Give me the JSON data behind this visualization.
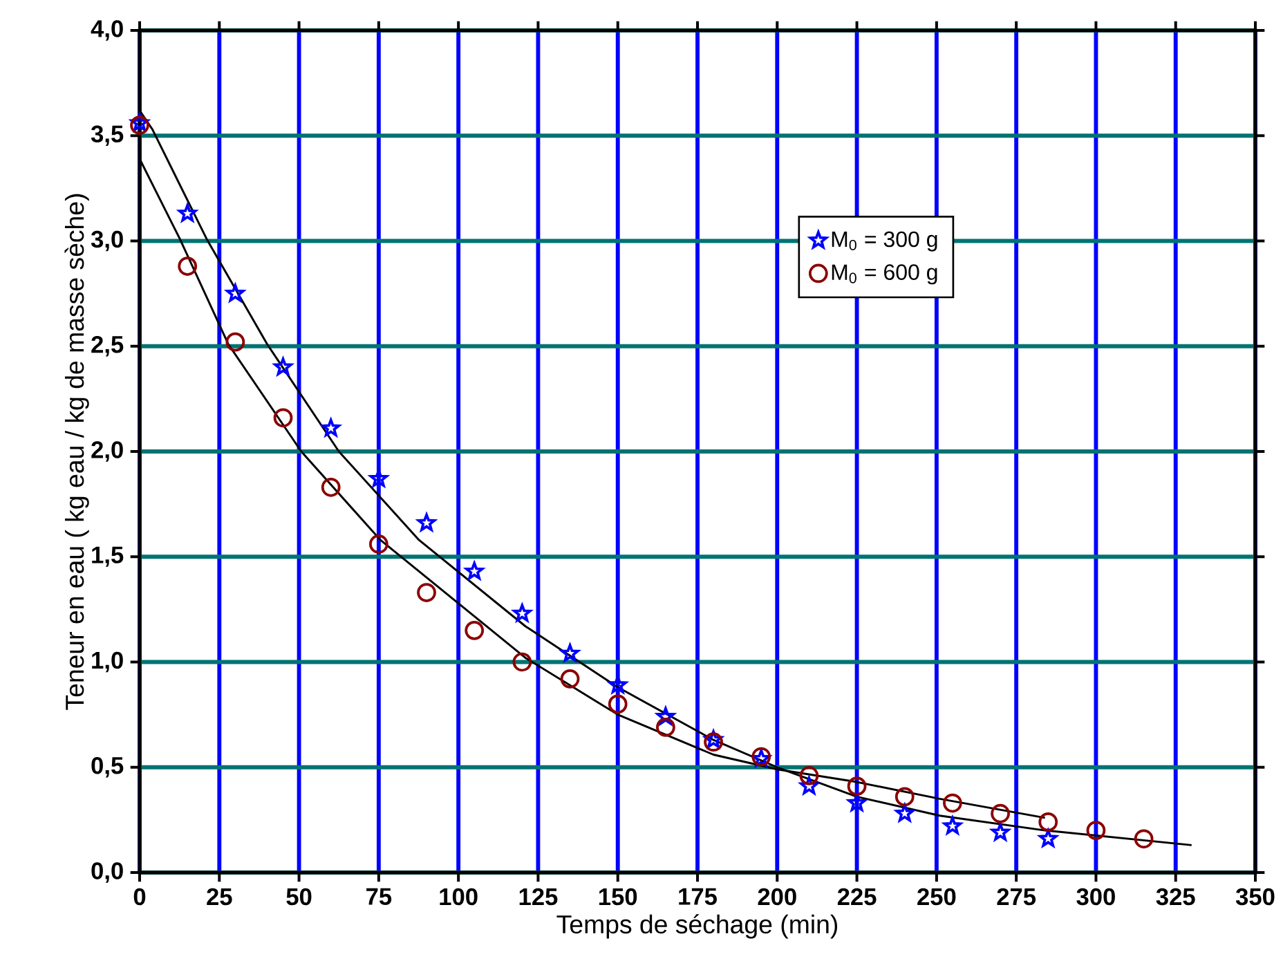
{
  "chart_data": {
    "type": "scatter",
    "xlabel": "Temps de séchage (min)",
    "ylabel": "Teneur en eau ( kg eau / kg de masse sèche)",
    "xlim": [
      0,
      350
    ],
    "xticks": [
      0,
      25,
      50,
      75,
      100,
      125,
      150,
      175,
      200,
      225,
      250,
      275,
      300,
      325,
      350
    ],
    "ylim": [
      0,
      4
    ],
    "yticks": [
      {
        "value": 0,
        "label": "0,0"
      },
      {
        "value": 0.5,
        "label": "0,5"
      },
      {
        "value": 1,
        "label": "1,0"
      },
      {
        "value": 1.5,
        "label": "1,5"
      },
      {
        "value": 2,
        "label": "2,0"
      },
      {
        "value": 2.5,
        "label": "2,5"
      },
      {
        "value": 3,
        "label": "3,0"
      },
      {
        "value": 3.5,
        "label": "3,5"
      },
      {
        "value": 4,
        "label": "4,0"
      }
    ],
    "grid": true,
    "legend": "top right",
    "series": [
      {
        "name": "M$_{0}$ = 300 g",
        "marker": "star",
        "color": "#0000ff",
        "x": [
          0,
          15,
          30,
          45,
          60,
          75,
          90,
          105,
          120,
          135,
          150,
          165,
          180,
          195,
          210,
          225,
          240,
          255,
          270,
          285
        ],
        "values": [
          3.56,
          3.13,
          2.75,
          2.4,
          2.11,
          1.87,
          1.66,
          1.43,
          1.23,
          1.04,
          0.89,
          0.74,
          0.63,
          0.54,
          0.41,
          0.33,
          0.28,
          0.22,
          0.19,
          0.16
        ]
      },
      {
        "name": "M$_{0}$ = 600 g",
        "marker": "circle",
        "color": "#8b0000",
        "x": [
          0,
          15,
          30,
          45,
          60,
          75,
          90,
          105,
          120,
          135,
          150,
          165,
          180,
          195,
          210,
          225,
          240,
          255,
          270,
          285,
          300,
          315
        ],
        "values": [
          3.55,
          2.88,
          2.52,
          2.16,
          1.83,
          1.56,
          1.33,
          1.15,
          1.0,
          0.92,
          0.8,
          0.69,
          0.62,
          0.55,
          0.46,
          0.41,
          0.36,
          0.33,
          0.28,
          0.24,
          0.2,
          0.16
        ]
      },
      {
        "type": "line",
        "marker": "none",
        "color": "#000000",
        "x": [
          0,
          4,
          21,
          40,
          62.5,
          87.6,
          121,
          150,
          180,
          200,
          225,
          251,
          284,
          330
        ],
        "values": [
          3.62,
          3.53,
          3.01,
          2.51,
          2.0,
          1.58,
          1.17,
          0.88,
          0.63,
          0.5,
          0.36,
          0.27,
          0.2,
          0.13
        ]
      },
      {
        "type": "line",
        "marker": "none",
        "color": "#000000",
        "x": [
          0,
          12.6,
          27.8,
          50.7,
          75.5,
          121,
          150,
          180,
          200,
          225,
          251,
          284
        ],
        "values": [
          3.39,
          3.01,
          2.51,
          2.0,
          1.58,
          1.02,
          0.75,
          0.56,
          0.49,
          0.43,
          0.35,
          0.26
        ]
      }
    ]
  }
}
